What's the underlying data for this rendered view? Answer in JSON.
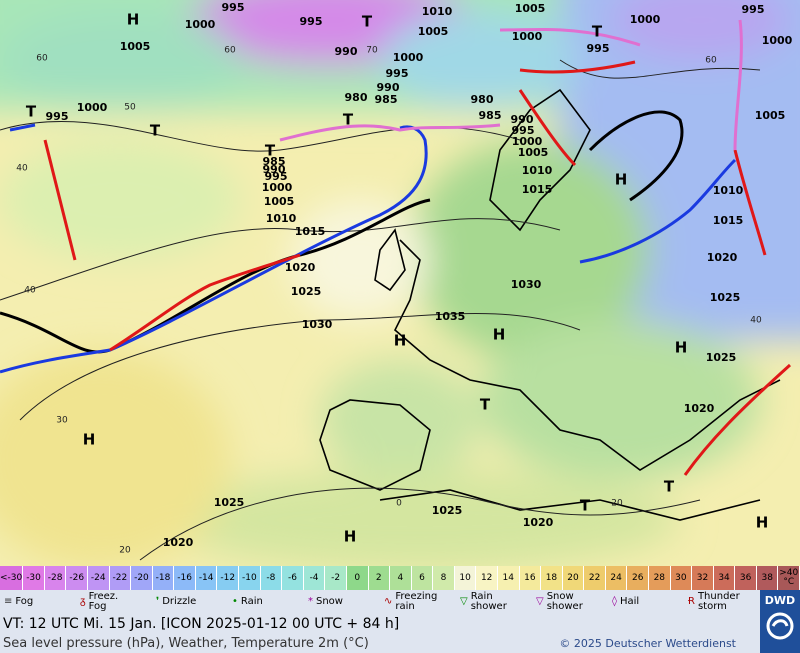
{
  "map": {
    "pressure_labels": [
      "995",
      "1000",
      "H",
      "1005",
      "995",
      "T",
      "1010",
      "1005",
      "1005",
      "1000",
      "T",
      "1000",
      "995",
      "995",
      "1000",
      "990",
      "1000",
      "995",
      "990",
      "985",
      "980",
      "980",
      "985",
      "990",
      "995",
      "1000",
      "1005",
      "1010",
      "1015",
      "T",
      "995",
      "1000",
      "T",
      "T",
      "985",
      "990",
      "995",
      "1000",
      "1005",
      "1010",
      "1015",
      "1020",
      "1025",
      "1030",
      "H",
      "1010",
      "1015",
      "1020",
      "1025",
      "1030",
      "1035",
      "H",
      "H",
      "H",
      "1025",
      "1020",
      "T",
      "H",
      "1025",
      "1025",
      "1020",
      "1020",
      "H",
      "T",
      "T",
      "H",
      "T",
      "1005"
    ],
    "isotherm_labels": [
      "60",
      "50",
      "40",
      "40",
      "30",
      "20",
      "60",
      "70",
      "60",
      "40",
      "20",
      "0"
    ]
  },
  "scale": {
    "labels": [
      "<-30",
      -30,
      -28,
      -26,
      -24,
      -22,
      -20,
      -18,
      -16,
      -14,
      -12,
      -10,
      -8,
      -6,
      -4,
      -2,
      0,
      2,
      4,
      6,
      8,
      10,
      12,
      14,
      16,
      18,
      20,
      22,
      24,
      26,
      28,
      30,
      32,
      34,
      36,
      38,
      ">40 °C"
    ],
    "colors": [
      "#d86ee0",
      "#e07ae6",
      "#d884ec",
      "#cc8cf0",
      "#bf94f4",
      "#b09cf6",
      "#a0a6f8",
      "#94b0f8",
      "#8cbaf8",
      "#88c4f6",
      "#86ccf2",
      "#88d4ee",
      "#8cdce8",
      "#94e2e0",
      "#9ee6d6",
      "#a8e8c8",
      "#8ed88a",
      "#9edc90",
      "#aee098",
      "#bee4a0",
      "#d0eaaa",
      "#f4f4d8",
      "#f8f4c4",
      "#f6f0b0",
      "#f4ea9c",
      "#f2e288",
      "#f0d878",
      "#eecc6c",
      "#ecbe64",
      "#e8ae5e",
      "#e49c5a",
      "#de8a58",
      "#d67a58",
      "#cc6c5a",
      "#c0625c",
      "#b05a5c",
      "#a85858"
    ]
  },
  "legend": [
    "Fog",
    "Freez. Fog",
    "Drizzle",
    "Rain",
    "Snow",
    "Freezing rain",
    "Rain shower",
    "Snow shower",
    "Hail",
    "Thunder storm"
  ],
  "footer": {
    "valid_time": "VT: 12 UTC Mi.   15 Jan. [ICON 2025-01-12  00 UTC + 84 h]",
    "subtitle": "Sea level pressure (hPa), Weather, Temperature 2m (°C)",
    "copyright": "© 2025 Deutscher Wetterdienst",
    "logo": "DWD"
  }
}
